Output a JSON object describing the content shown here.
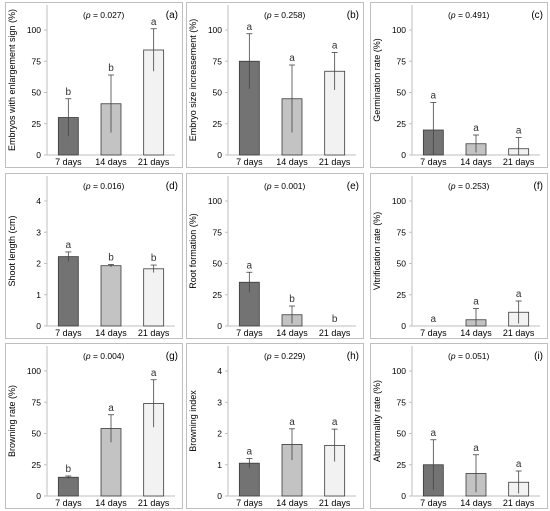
{
  "figure": {
    "categories": [
      "7 days",
      "14 days",
      "21 days"
    ],
    "colors": {
      "7 days": "#737373",
      "14 days": "#c3c3c3",
      "21 days": "#f2f2f2",
      "edge": "#3a3a3a",
      "axis": "#bfbfbf"
    }
  },
  "chart_data": [
    {
      "type": "bar",
      "panel_label": "(a)",
      "p_text": "(p = 0.027)",
      "ylabel": "Embryos with enlargement sign (%)",
      "categories": [
        "7 days",
        "14 days",
        "21 days"
      ],
      "values": [
        30,
        41,
        84
      ],
      "errors": [
        15,
        23,
        17
      ],
      "letters": [
        "b",
        "b",
        "a"
      ],
      "ylim": [
        0,
        120
      ],
      "yticks": [
        0,
        25,
        50,
        75,
        100
      ]
    },
    {
      "type": "bar",
      "panel_label": "(b)",
      "p_text": "(p = 0.258)",
      "ylabel": "Embryo size increasement (%)",
      "categories": [
        "7 days",
        "14 days",
        "21 days"
      ],
      "values": [
        75,
        45,
        67
      ],
      "errors": [
        22,
        27,
        15
      ],
      "letters": [
        "a",
        "a",
        "a"
      ],
      "ylim": [
        0,
        120
      ],
      "yticks": [
        0,
        25,
        50,
        75,
        100
      ]
    },
    {
      "type": "bar",
      "panel_label": "(c)",
      "p_text": "(p = 0.491)",
      "ylabel": "Germination rate (%)",
      "categories": [
        "7 days",
        "14 days",
        "21 days"
      ],
      "values": [
        20,
        9,
        5
      ],
      "errors": [
        22,
        7,
        9
      ],
      "letters": [
        "a",
        "a",
        "a"
      ],
      "ylim": [
        0,
        120
      ],
      "yticks": [
        0,
        25,
        50,
        75,
        100
      ]
    },
    {
      "type": "bar",
      "panel_label": "(d)",
      "p_text": "(p = 0.016)",
      "ylabel": "Shoot length (cm)",
      "categories": [
        "7 days",
        "14 days",
        "21 days"
      ],
      "values": [
        2.22,
        1.93,
        1.83
      ],
      "errors": [
        0.15,
        0.04,
        0.12
      ],
      "letters": [
        "a",
        "b",
        "b"
      ],
      "ylim": [
        0,
        4.8
      ],
      "yticks": [
        0,
        1,
        2,
        3,
        4
      ]
    },
    {
      "type": "bar",
      "panel_label": "(e)",
      "p_text": "(p = 0.001)",
      "ylabel": "Root formation (%)",
      "categories": [
        "7 days",
        "14 days",
        "21 days"
      ],
      "values": [
        35,
        9,
        0
      ],
      "errors": [
        8,
        7,
        0
      ],
      "letters": [
        "a",
        "b",
        "b"
      ],
      "ylim": [
        0,
        120
      ],
      "yticks": [
        0,
        25,
        50,
        75,
        100
      ]
    },
    {
      "type": "bar",
      "panel_label": "(f)",
      "p_text": "(p = 0.253)",
      "ylabel": "Vitrification rate (%)",
      "categories": [
        "7 days",
        "14 days",
        "21 days"
      ],
      "values": [
        0,
        5,
        11
      ],
      "errors": [
        0,
        9,
        9
      ],
      "letters": [
        "a",
        "a",
        "a"
      ],
      "ylim": [
        0,
        120
      ],
      "yticks": [
        0,
        25,
        50,
        75,
        100
      ]
    },
    {
      "type": "bar",
      "panel_label": "(g)",
      "p_text": "(p = 0.004)",
      "ylabel": "Browning rate (%)",
      "categories": [
        "7 days",
        "14 days",
        "21 days"
      ],
      "values": [
        15,
        54,
        74
      ],
      "errors": [
        1,
        11,
        19
      ],
      "letters": [
        "b",
        "a",
        "a"
      ],
      "ylim": [
        0,
        120
      ],
      "yticks": [
        0,
        25,
        50,
        75,
        100
      ]
    },
    {
      "type": "bar",
      "panel_label": "(h)",
      "p_text": "(p = 0.229)",
      "ylabel": "Browning index",
      "categories": [
        "7 days",
        "14 days",
        "21 days"
      ],
      "values": [
        1.05,
        1.65,
        1.62
      ],
      "errors": [
        0.15,
        0.5,
        0.52
      ],
      "letters": [
        "a",
        "a",
        "a"
      ],
      "ylim": [
        0,
        4.8
      ],
      "yticks": [
        0,
        1,
        2,
        3,
        4
      ]
    },
    {
      "type": "bar",
      "panel_label": "(i)",
      "p_text": "(p = 0.051)",
      "ylabel": "Abnormality rate (%)",
      "categories": [
        "7 days",
        "14 days",
        "21 days"
      ],
      "values": [
        25,
        18,
        11
      ],
      "errors": [
        20,
        15,
        9
      ],
      "letters": [
        "a",
        "a",
        "a"
      ],
      "ylim": [
        0,
        120
      ],
      "yticks": [
        0,
        25,
        50,
        75,
        100
      ]
    }
  ]
}
